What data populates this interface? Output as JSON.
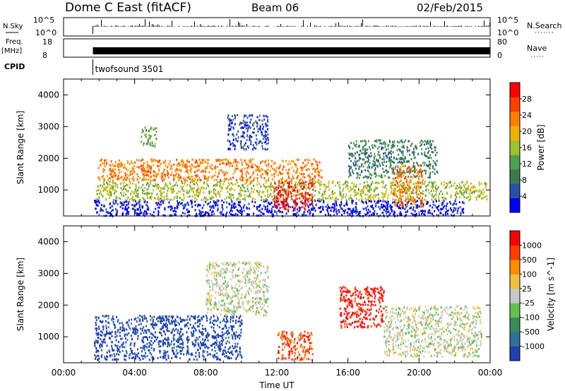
{
  "header": {
    "title": "Dome C East (fitACF)",
    "beam": "Beam 06",
    "date": "02/Feb/2015"
  },
  "strips": {
    "nsky_label": "N.Sky",
    "nsky_ticks": [
      "10^5",
      "10^0"
    ],
    "nsearch_label": "N.Search",
    "nsearch_ticks": [
      "10^5",
      "10^0"
    ],
    "freq_label": "Freq.",
    "freq_unit": "[MHz]",
    "freq_ticks": [
      "18",
      "8"
    ],
    "nave_label": "Nave",
    "nave_ticks": [
      "80",
      "0"
    ],
    "cpid_label": "CPID",
    "cpid_value": "twofsound 3501",
    "cpid_start_hour": 1.65
  },
  "chart_data": [
    {
      "type": "heatmap",
      "title": "",
      "ylabel": "Slant Range [km]",
      "xlabel": "",
      "xlim": [
        0,
        24
      ],
      "ylim": [
        180,
        4500
      ],
      "yticks": [
        "1000",
        "2000",
        "3000",
        "4000"
      ],
      "colorbar": {
        "label": "Power [dB]",
        "ticks": [
          "28",
          "24",
          "20",
          "16",
          "12",
          "8",
          "4"
        ],
        "colors": [
          "#0000ff",
          "#2850a8",
          "#3c7850",
          "#50a050",
          "#a0c030",
          "#f0b000",
          "#ff8000",
          "#ff4000",
          "#ff0000"
        ]
      },
      "regions": [
        {
          "x": [
            1.7,
            22.5
          ],
          "y": [
            200,
            700
          ],
          "value": 8
        },
        {
          "x": [
            1.8,
            23.8
          ],
          "y": [
            700,
            1300
          ],
          "value": 18
        },
        {
          "x": [
            1.9,
            14.5
          ],
          "y": [
            1300,
            2000
          ],
          "value": 22
        },
        {
          "x": [
            4.3,
            5.2
          ],
          "y": [
            2400,
            3000
          ],
          "value": 16
        },
        {
          "x": [
            9.2,
            11.5
          ],
          "y": [
            2300,
            3400
          ],
          "value": 10
        },
        {
          "x": [
            11.8,
            14.0
          ],
          "y": [
            400,
            1300
          ],
          "value": 28
        },
        {
          "x": [
            16.0,
            21.0
          ],
          "y": [
            1400,
            2600
          ],
          "value": 12
        },
        {
          "x": [
            18.5,
            20.2
          ],
          "y": [
            500,
            1800
          ],
          "value": 24
        }
      ]
    },
    {
      "type": "heatmap",
      "title": "",
      "ylabel": "Slant Range [km]",
      "xlabel": "Time UT",
      "xlim": [
        0,
        24
      ],
      "ylim": [
        180,
        4500
      ],
      "yticks": [
        "1000",
        "2000",
        "3000",
        "4000"
      ],
      "xticks": [
        "00:00",
        "04:00",
        "08:00",
        "12:00",
        "16:00",
        "20:00",
        "00:00"
      ],
      "colorbar": {
        "label": "Velocity [m s^-1]",
        "ticks": [
          "1000",
          "500",
          "100",
          "25",
          "-25",
          "-100",
          "-500",
          "-1000"
        ],
        "colors": [
          "#2040b0",
          "#30709a",
          "#3a8a5a",
          "#60c050",
          "#c8c8c8",
          "#f0c040",
          "#ff8c00",
          "#ff4000",
          "#ff0000"
        ]
      },
      "regions": [
        {
          "x": [
            1.7,
            10.0
          ],
          "y": [
            300,
            1700
          ],
          "value": -300
        },
        {
          "x": [
            8.0,
            11.5
          ],
          "y": [
            1700,
            3400
          ],
          "value": 10
        },
        {
          "x": [
            12.0,
            14.0
          ],
          "y": [
            300,
            1200
          ],
          "value": 300
        },
        {
          "x": [
            15.5,
            18.0
          ],
          "y": [
            1300,
            2600
          ],
          "value": 400
        },
        {
          "x": [
            18.0,
            23.5
          ],
          "y": [
            400,
            2000
          ],
          "value": 80
        }
      ]
    }
  ]
}
